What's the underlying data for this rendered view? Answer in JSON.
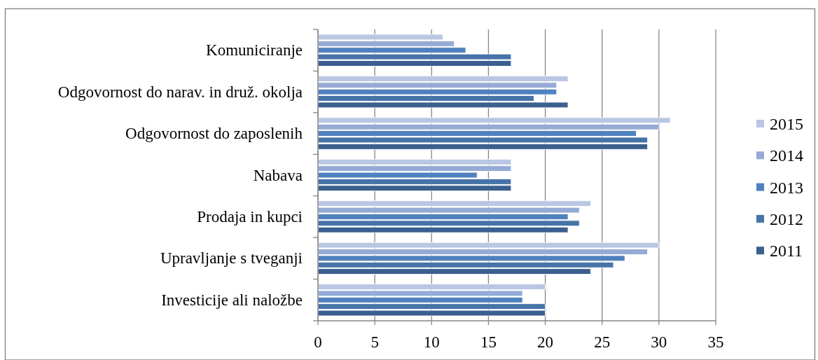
{
  "chart_data": {
    "type": "bar",
    "orientation": "horizontal",
    "categories": [
      "Komuniciranje",
      "Odgovornost do narav. in druž. okolja",
      "Odgovornost do zaposlenih",
      "Nabava",
      "Prodaja in kupci",
      "Upravljanje s tveganji",
      "Investicije ali naložbe"
    ],
    "series": [
      {
        "name": "2015",
        "color": "#b9c7e2",
        "values": [
          11,
          22,
          31,
          17,
          24,
          30,
          20
        ]
      },
      {
        "name": "2014",
        "color": "#95abd5",
        "values": [
          12,
          21,
          30,
          17,
          23,
          29,
          18
        ]
      },
      {
        "name": "2013",
        "color": "#4f81bd",
        "values": [
          13,
          21,
          28,
          14,
          22,
          27,
          18
        ]
      },
      {
        "name": "2012",
        "color": "#4673a8",
        "values": [
          17,
          19,
          29,
          17,
          23,
          26,
          20
        ]
      },
      {
        "name": "2011",
        "color": "#3b5f8e",
        "values": [
          17,
          22,
          29,
          17,
          22,
          24,
          20
        ]
      }
    ],
    "xlim": [
      0,
      35
    ],
    "xticks": [
      0,
      5,
      10,
      15,
      20,
      25,
      30,
      35
    ],
    "grid": "x",
    "legend": "right"
  }
}
